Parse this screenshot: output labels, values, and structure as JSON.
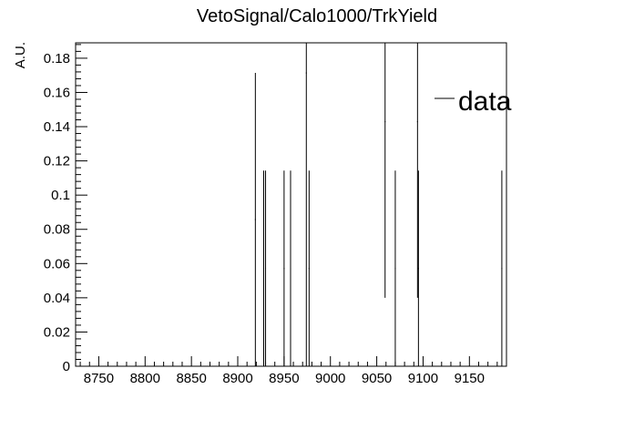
{
  "chart_data": {
    "type": "scatter",
    "title": "VetoSignal/Calo1000/TrkYield",
    "xlabel": "",
    "ylabel": "A.U.",
    "xlim": [
      8725,
      9190
    ],
    "ylim": [
      0,
      0.189
    ],
    "x_ticks": [
      8750,
      8800,
      8850,
      8900,
      8950,
      9000,
      9050,
      9100,
      9150
    ],
    "x_tick_labels": [
      "8750",
      "8800",
      "8850",
      "8900",
      "8950",
      "9000",
      "9050",
      "9100",
      "9150"
    ],
    "y_ticks": [
      0,
      0.02,
      0.04,
      0.06,
      0.08,
      0.1,
      0.12,
      0.14,
      0.16,
      0.18
    ],
    "y_tick_labels": [
      "0",
      "0.02",
      "0.04",
      "0.06",
      "0.08",
      "0.1",
      "0.12",
      "0.14",
      "0.16",
      "0.18"
    ],
    "grid": false,
    "legend_position": "top-right",
    "series": [
      {
        "name": "data",
        "style": "error-bars",
        "color": "#000000",
        "points": [
          {
            "x": 8919,
            "y": 0.0857,
            "ylow": 0.0,
            "yhigh": 0.1714
          },
          {
            "x": 8928,
            "y": 0.0571,
            "ylow": 0.0,
            "yhigh": 0.1143
          },
          {
            "x": 8930,
            "y": 0.0571,
            "ylow": 0.0,
            "yhigh": 0.1143
          },
          {
            "x": 8950,
            "y": 0.0571,
            "ylow": 0.0,
            "yhigh": 0.1143
          },
          {
            "x": 8957,
            "y": 0.0571,
            "ylow": 0.0,
            "yhigh": 0.1143
          },
          {
            "x": 8974,
            "y": 0.1714,
            "ylow": 0.0,
            "yhigh": 0.189
          },
          {
            "x": 8977,
            "y": 0.0571,
            "ylow": 0.0,
            "yhigh": 0.1143
          },
          {
            "x": 9059,
            "y": 0.1429,
            "ylow": 0.04,
            "yhigh": 0.189
          },
          {
            "x": 9070,
            "y": 0.0571,
            "ylow": 0.0,
            "yhigh": 0.1143
          },
          {
            "x": 9094,
            "y": 0.1429,
            "ylow": 0.04,
            "yhigh": 0.189
          },
          {
            "x": 9095,
            "y": 0.0571,
            "ylow": 0.0,
            "yhigh": 0.1143
          },
          {
            "x": 9185,
            "y": 0.0571,
            "ylow": 0.0,
            "yhigh": 0.1143
          }
        ]
      }
    ]
  }
}
